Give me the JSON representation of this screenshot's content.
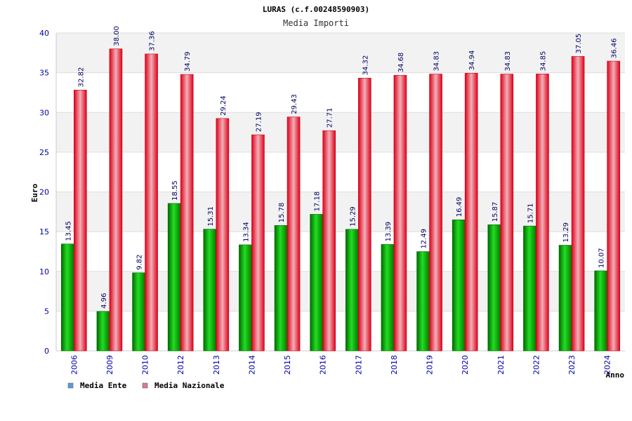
{
  "chart_data": {
    "type": "bar",
    "title": "LURAS (c.f.00248590903)",
    "subtitle": "Media Importi",
    "xlabel": "Anno",
    "ylabel": "Euro",
    "ylim": [
      0,
      40
    ],
    "yticks": [
      0,
      5,
      10,
      15,
      20,
      25,
      30,
      35,
      40
    ],
    "grid": true,
    "legend_position": "bottom-left",
    "categories": [
      "2006",
      "2009",
      "2010",
      "2012",
      "2013",
      "2014",
      "2015",
      "2016",
      "2017",
      "2018",
      "2019",
      "2020",
      "2021",
      "2022",
      "2023",
      "2024"
    ],
    "series": [
      {
        "name": "Media Ente",
        "color": "#00b000",
        "legend_color": "#5b9bd5",
        "values": [
          13.45,
          4.96,
          9.82,
          18.55,
          15.31,
          13.34,
          15.78,
          17.18,
          15.29,
          13.39,
          12.49,
          16.49,
          15.87,
          15.71,
          13.29,
          10.07
        ],
        "labels": [
          "13.45",
          "4.96",
          "9.82",
          "18.55",
          "15.31",
          "13.34",
          "15.78",
          "17.18",
          "15.29",
          "13.39",
          "12.49",
          "16.49",
          "15.87",
          "15.71",
          "13.29",
          "10.07"
        ]
      },
      {
        "name": "Media Nazionale",
        "color": "#e8202a",
        "legend_color": "#d9779a",
        "values": [
          32.82,
          38.0,
          37.36,
          34.79,
          29.24,
          27.19,
          29.43,
          27.71,
          34.32,
          34.68,
          34.83,
          34.94,
          34.83,
          34.85,
          37.05,
          36.46
        ],
        "labels": [
          "32.82",
          "38.00",
          "37.36",
          "34.79",
          "29.24",
          "27.19",
          "29.43",
          "27.71",
          "34.32",
          "34.68",
          "34.83",
          "34.94",
          "34.83",
          "34.85",
          "37.05",
          "36.46"
        ]
      }
    ]
  }
}
